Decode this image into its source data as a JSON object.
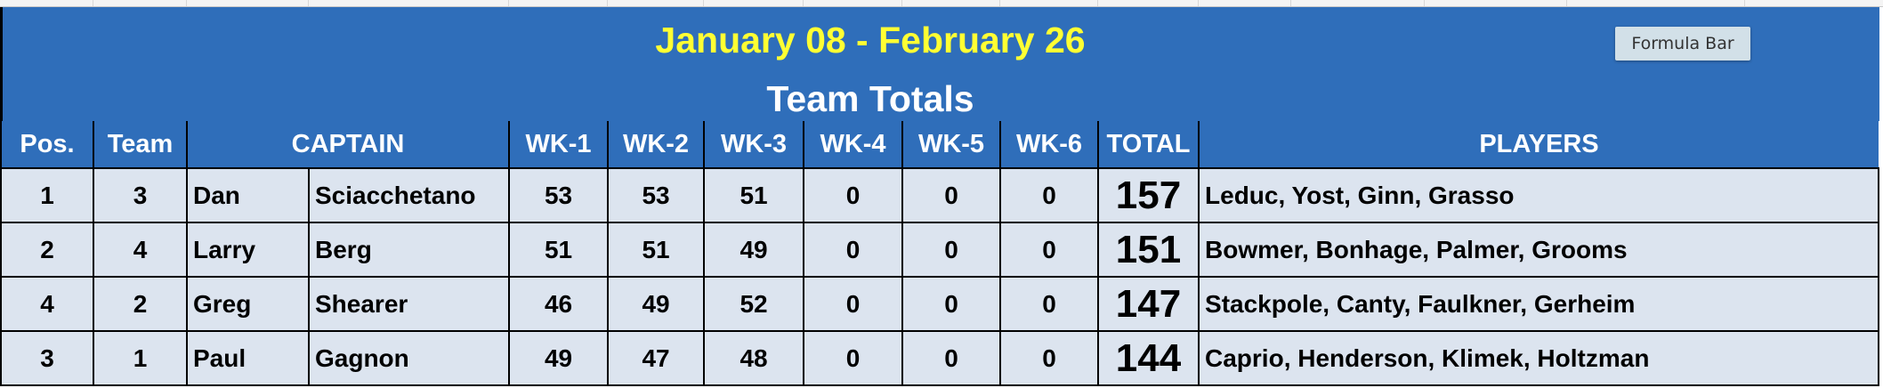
{
  "title": "January 08 - February 26",
  "subtitle": "Team Totals",
  "formula_bar_button": "Formula Bar",
  "colors": {
    "header_bg": "#2F6EBA",
    "title": "#FFFF33",
    "row_bg": "#DCE4EF"
  },
  "headers": {
    "pos": "Pos.",
    "team": "Team",
    "captain": "CAPTAIN",
    "wk1": "WK-1",
    "wk2": "WK-2",
    "wk3": "WK-3",
    "wk4": "WK-4",
    "wk5": "WK-5",
    "wk6": "WK-6",
    "total": "TOTAL",
    "players": "PLAYERS"
  },
  "rows": [
    {
      "pos": "1",
      "team": "3",
      "first": "Dan",
      "last": "Sciacchetano",
      "wk1": "53",
      "wk2": "53",
      "wk3": "51",
      "wk4": "0",
      "wk5": "0",
      "wk6": "0",
      "total": "157",
      "players": "Leduc, Yost, Ginn, Grasso"
    },
    {
      "pos": "2",
      "team": "4",
      "first": "Larry",
      "last": "Berg",
      "wk1": "51",
      "wk2": "51",
      "wk3": "49",
      "wk4": "0",
      "wk5": "0",
      "wk6": "0",
      "total": "151",
      "players": "Bowmer, Bonhage, Palmer, Grooms"
    },
    {
      "pos": "4",
      "team": "2",
      "first": "Greg",
      "last": "Shearer",
      "wk1": "46",
      "wk2": "49",
      "wk3": "52",
      "wk4": "0",
      "wk5": "0",
      "wk6": "0",
      "total": "147",
      "players": "Stackpole, Canty, Faulkner, Gerheim"
    },
    {
      "pos": "3",
      "team": "1",
      "first": "Paul",
      "last": "Gagnon",
      "wk1": "49",
      "wk2": "47",
      "wk3": "48",
      "wk4": "0",
      "wk5": "0",
      "wk6": "0",
      "total": "144",
      "players": "Caprio, Henderson, Klimek, Holtzman"
    }
  ]
}
